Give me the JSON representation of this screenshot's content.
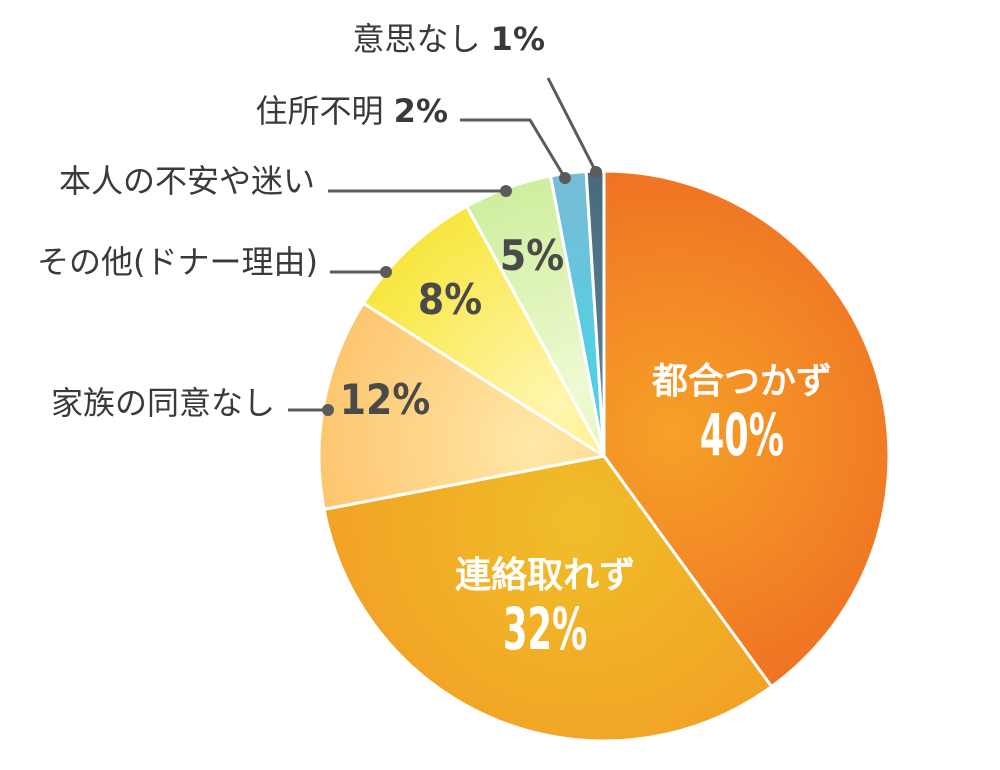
{
  "chart_data": {
    "type": "pie",
    "unit": "%",
    "slices": [
      {
        "label": "都合つかず",
        "value": 40,
        "value_label": "40%",
        "colors": [
          "#f6a128",
          "#ef6d23"
        ],
        "label_inside": true
      },
      {
        "label": "連絡取れず",
        "value": 32,
        "value_label": "32%",
        "colors": [
          "#f0be2a",
          "#f29c24"
        ],
        "label_inside": true
      },
      {
        "label": "家族の同意なし",
        "value": 12,
        "value_label": "12%",
        "colors": [
          "#ffe8a8",
          "#fcb85a"
        ],
        "label_inside": false
      },
      {
        "label": "その他(ドナー理由)",
        "value": 8,
        "value_label": "8%",
        "colors": [
          "#fff6b0",
          "#f5e010"
        ],
        "label_inside": false
      },
      {
        "label": "本人の不安や迷い",
        "value": 5,
        "value_label": "5%",
        "colors": [
          "#eefad2",
          "#c2e98a"
        ],
        "label_inside": false
      },
      {
        "label": "住所不明",
        "value": 2,
        "value_label": "2%",
        "colors": [
          "#4fd1e6",
          "#8ab3cf"
        ],
        "label_inside": false
      },
      {
        "label": "意思なし",
        "value": 1,
        "value_label": "1%",
        "colors": [
          "#5a8095",
          "#3f6173"
        ],
        "label_inside": false
      }
    ],
    "legend": "none",
    "colors": {
      "leader_line": "#5b5b5b",
      "label_text": "#3a3a3a",
      "slice_border": "#ffffff"
    }
  }
}
